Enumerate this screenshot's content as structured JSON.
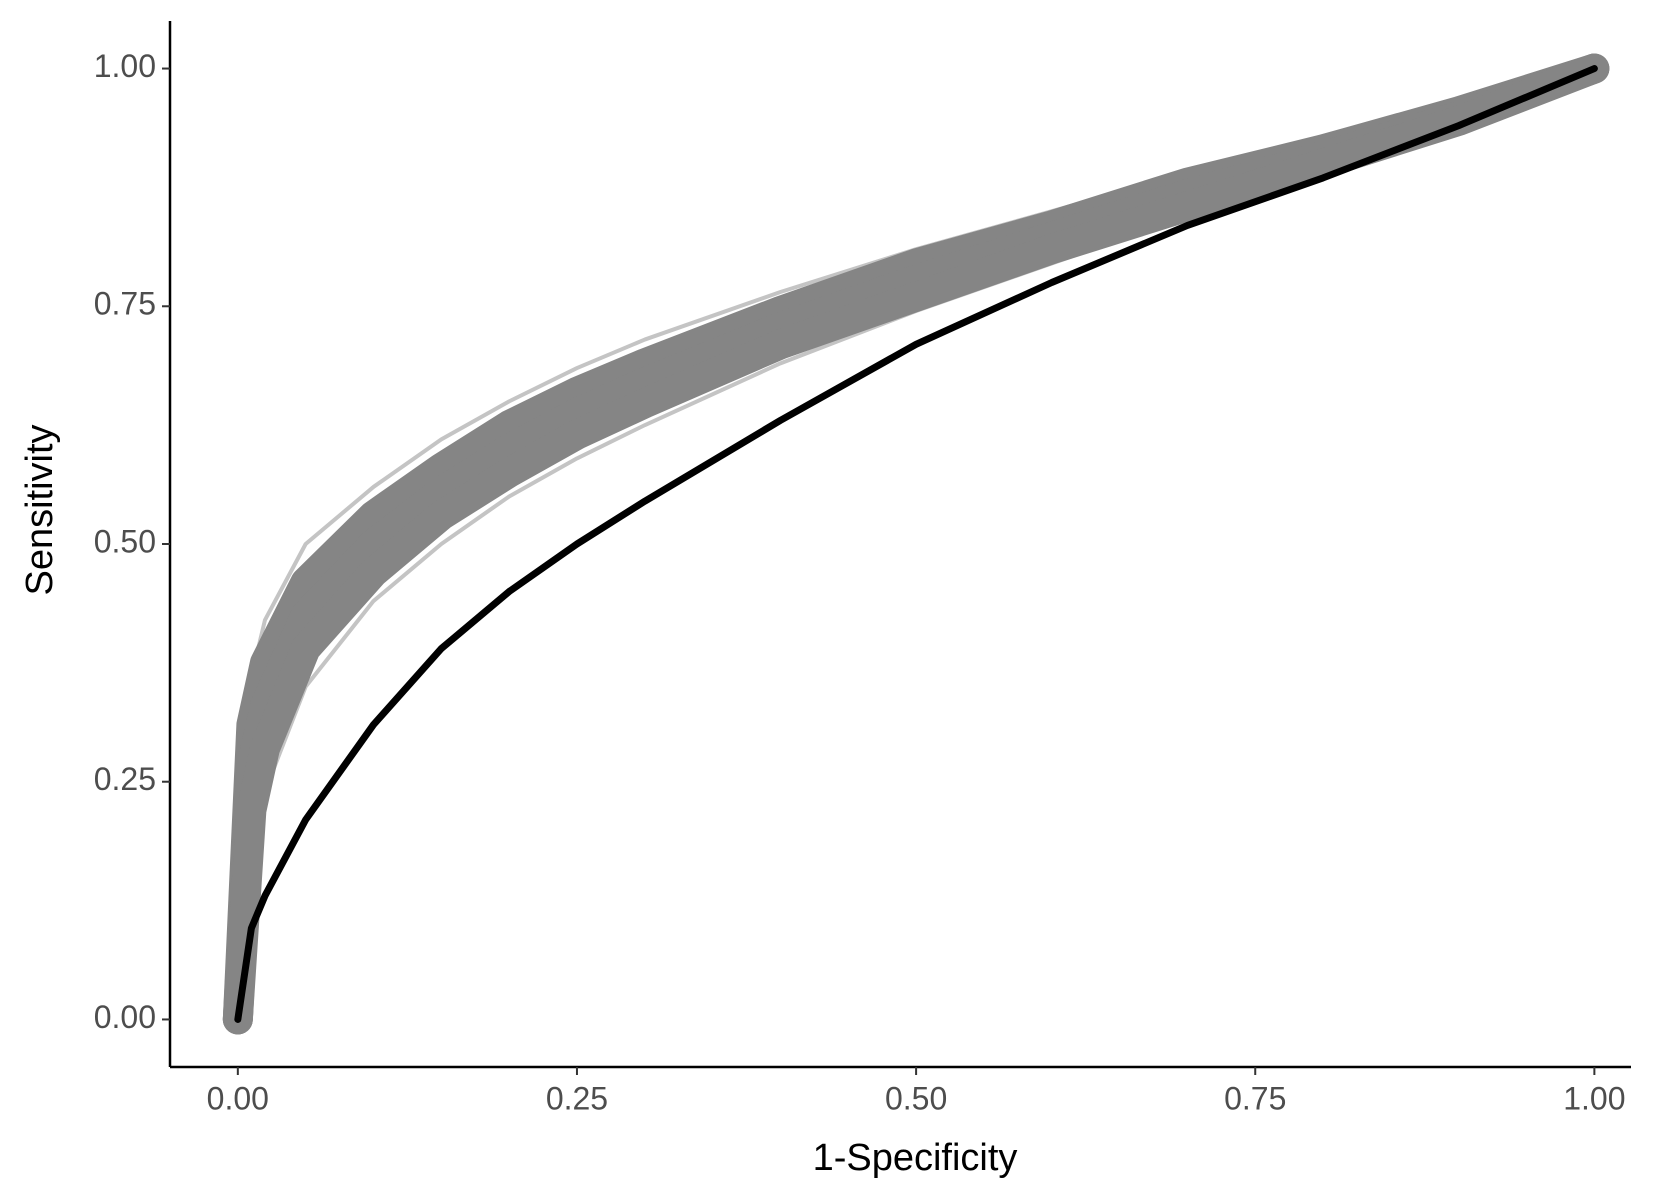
{
  "chart_data": {
    "type": "line",
    "x_label": "1-Specificity",
    "y_label": "Sensitivity",
    "x": [
      0,
      0.01,
      0.02,
      0.05,
      0.1,
      0.15,
      0.2,
      0.25,
      0.3,
      0.4,
      0.5,
      0.6,
      0.7,
      0.8,
      0.9,
      1.0
    ],
    "series": [
      {
        "color": "#c4c4c4",
        "width": 4,
        "values": [
          0,
          0.36,
          0.42,
          0.5,
          0.56,
          0.61,
          0.65,
          0.685,
          0.715,
          0.765,
          0.81,
          0.85,
          0.89,
          0.925,
          0.96,
          1
        ]
      },
      {
        "color": "#c4c4c4",
        "width": 4,
        "values": [
          0,
          0.17,
          0.24,
          0.35,
          0.44,
          0.5,
          0.55,
          0.59,
          0.625,
          0.69,
          0.745,
          0.795,
          0.845,
          0.89,
          0.94,
          1
        ]
      },
      {
        "color": "#858585",
        "width": 30,
        "values": [
          0,
          0.31,
          0.375,
          0.46,
          0.53,
          0.58,
          0.625,
          0.66,
          0.69,
          0.745,
          0.795,
          0.835,
          0.88,
          0.915,
          0.955,
          1
        ]
      },
      {
        "color": "#858585",
        "width": 30,
        "values": [
          0,
          0.265,
          0.33,
          0.425,
          0.5,
          0.555,
          0.6,
          0.638,
          0.67,
          0.728,
          0.778,
          0.823,
          0.868,
          0.908,
          0.95,
          1
        ]
      },
      {
        "color": "#858585",
        "width": 30,
        "values": [
          0,
          0.22,
          0.285,
          0.39,
          0.47,
          0.53,
          0.575,
          0.615,
          0.648,
          0.71,
          0.76,
          0.81,
          0.855,
          0.9,
          0.945,
          1
        ]
      },
      {
        "color": "#000000",
        "width": 7,
        "values": [
          0,
          0.096,
          0.13,
          0.21,
          0.31,
          0.39,
          0.45,
          0.5,
          0.545,
          0.63,
          0.71,
          0.775,
          0.835,
          0.885,
          0.94,
          1
        ]
      }
    ],
    "xlim": [
      -0.05,
      1.027
    ],
    "ylim": [
      -0.05,
      1.05
    ],
    "xticks": [
      {
        "value": 0,
        "label": "0.00"
      },
      {
        "value": 0.25,
        "label": "0.25"
      },
      {
        "value": 0.5,
        "label": "0.50"
      },
      {
        "value": 0.75,
        "label": "0.75"
      },
      {
        "value": 1,
        "label": "1.00"
      }
    ],
    "yticks": [
      {
        "value": 0,
        "label": "0.00"
      },
      {
        "value": 0.25,
        "label": "0.25"
      },
      {
        "value": 0.5,
        "label": "0.50"
      },
      {
        "value": 0.75,
        "label": "0.75"
      },
      {
        "value": 1,
        "label": "1.00"
      }
    ],
    "grid": false
  }
}
